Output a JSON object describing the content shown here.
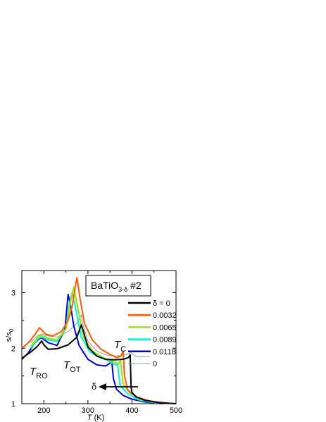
{
  "chart_data": {
    "type": "line",
    "title": "",
    "xlabel_italic": "T",
    "xlabel_unit": "(K)",
    "ylabel_main": "s/s",
    "ylabel_sub": "0",
    "xlim": [
      150,
      500
    ],
    "ylim": [
      1,
      3.4
    ],
    "xticks": [
      200,
      300,
      400,
      500
    ],
    "yticks": [
      1,
      2,
      3
    ],
    "grid": false,
    "legend_position": "right",
    "sample": {
      "main": "BaTiO",
      "sub": "3-δ",
      "suffix": " #2"
    },
    "legend": {
      "first_label": "δ = 0",
      "last_label": "0"
    },
    "annotations": {
      "t_ro_main": "T",
      "t_ro_sub": "RO",
      "t_ot_main": "T",
      "t_ot_sub": "OT",
      "t_c_main": "T",
      "t_c_sub": "C",
      "delta_arrow": "δ"
    },
    "series": [
      {
        "name": "δ = 0",
        "color": "#000000",
        "x": [
          150,
          170,
          185,
          195,
          200,
          210,
          230,
          255,
          275,
          285,
          290,
          300,
          320,
          340,
          360,
          380,
          392,
          396,
          398,
          400,
          410,
          430,
          460,
          500
        ],
        "y": [
          1.82,
          1.93,
          2.03,
          2.13,
          2.06,
          1.98,
          1.99,
          2.06,
          2.2,
          2.42,
          2.3,
          2.02,
          1.86,
          1.8,
          1.79,
          1.8,
          1.83,
          1.88,
          1.3,
          1.2,
          1.12,
          1.06,
          1.02,
          1.0
        ]
      },
      {
        "name": "0.0032",
        "color": "#ff5a00",
        "x": [
          150,
          165,
          180,
          190,
          195,
          205,
          220,
          240,
          255,
          265,
          270,
          275,
          282,
          292,
          310,
          330,
          350,
          365,
          375,
          380,
          383,
          390,
          410,
          440,
          480
        ],
        "y": [
          2.0,
          2.1,
          2.25,
          2.37,
          2.33,
          2.25,
          2.22,
          2.3,
          2.5,
          2.78,
          3.05,
          3.27,
          2.9,
          2.45,
          2.15,
          1.98,
          1.89,
          1.83,
          1.86,
          1.95,
          1.5,
          1.25,
          1.12,
          1.05,
          1.01
        ]
      },
      {
        "name": "0.0065",
        "color": "#99e600",
        "x": [
          170,
          180,
          188,
          196,
          210,
          230,
          250,
          262,
          268,
          274,
          290,
          310,
          330,
          350,
          365,
          370,
          374,
          380,
          395,
          420,
          460
        ],
        "y": [
          2.03,
          2.13,
          2.22,
          2.23,
          2.18,
          2.15,
          2.35,
          2.9,
          3.1,
          2.85,
          2.2,
          1.95,
          1.85,
          1.78,
          1.74,
          1.72,
          1.78,
          1.35,
          1.2,
          1.08,
          1.02
        ]
      },
      {
        "name": "0.0089",
        "color": "#00f5d0",
        "x": [
          170,
          180,
          188,
          195,
          210,
          230,
          250,
          258,
          264,
          270,
          285,
          305,
          325,
          345,
          358,
          363,
          367,
          373,
          390,
          415,
          455
        ],
        "y": [
          2.0,
          2.1,
          2.18,
          2.2,
          2.15,
          2.12,
          2.35,
          2.8,
          3.0,
          2.8,
          2.2,
          1.93,
          1.84,
          1.78,
          1.72,
          1.7,
          1.73,
          1.33,
          1.18,
          1.07,
          1.01
        ]
      },
      {
        "name": "0.0118",
        "color": "#0000dd",
        "x": [
          150,
          165,
          178,
          188,
          195,
          210,
          230,
          248,
          255,
          260,
          268,
          280,
          300,
          320,
          340,
          350,
          354,
          358,
          365,
          380,
          400,
          430,
          470
        ],
        "y": [
          1.8,
          1.92,
          2.08,
          2.16,
          2.19,
          2.1,
          2.05,
          2.35,
          2.97,
          2.8,
          2.4,
          2.05,
          1.8,
          1.7,
          1.68,
          1.73,
          1.79,
          1.45,
          1.26,
          1.15,
          1.08,
          1.03,
          1.0
        ]
      },
      {
        "name": "0",
        "color": "#9a9a9a",
        "x": [
          170,
          185,
          195,
          210,
          230,
          255,
          275,
          285,
          288,
          300,
          320,
          340,
          360,
          380,
          393,
          398,
          400,
          410,
          440
        ],
        "y": [
          2.1,
          2.22,
          2.26,
          2.22,
          2.2,
          2.3,
          2.45,
          2.6,
          2.45,
          2.13,
          1.95,
          1.88,
          1.86,
          1.87,
          1.9,
          1.93,
          1.9,
          1.85,
          1.85
        ]
      }
    ]
  }
}
